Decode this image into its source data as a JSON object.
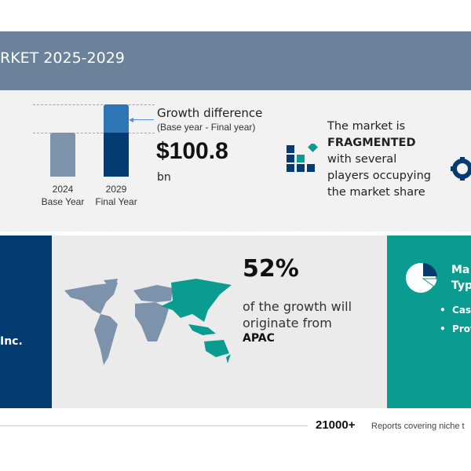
{
  "header": {
    "title": "RKET 2025-2029"
  },
  "growth_chart": {
    "bars": [
      {
        "year": "2024",
        "label": "Base Year"
      },
      {
        "year": "2029",
        "label": "Final Year"
      }
    ],
    "title": "Growth difference",
    "subtitle": "(Base year - Final year)",
    "value": "$100.8",
    "unit": "bn"
  },
  "market": {
    "line1": "The market is",
    "emphasis": "FRAGMENTED",
    "line3": "with several",
    "line4": "players occupying",
    "line5": "the market share"
  },
  "vendor": {
    "partial_name": "Inc."
  },
  "region": {
    "percent": "52%",
    "text1": "of the growth will",
    "text2": "originate from",
    "name": "APAC"
  },
  "segments": {
    "title1": "Ma",
    "title2": "Typ",
    "items": [
      "Cas",
      "Prof"
    ]
  },
  "footer": {
    "count": "21000+",
    "text": "Reports covering niche t"
  },
  "colors": {
    "header": "#6b829b",
    "navy": "#043b70",
    "teal": "#0a9b91",
    "base_bar": "#7d92ab",
    "growth_bar": "#2e75b6"
  }
}
